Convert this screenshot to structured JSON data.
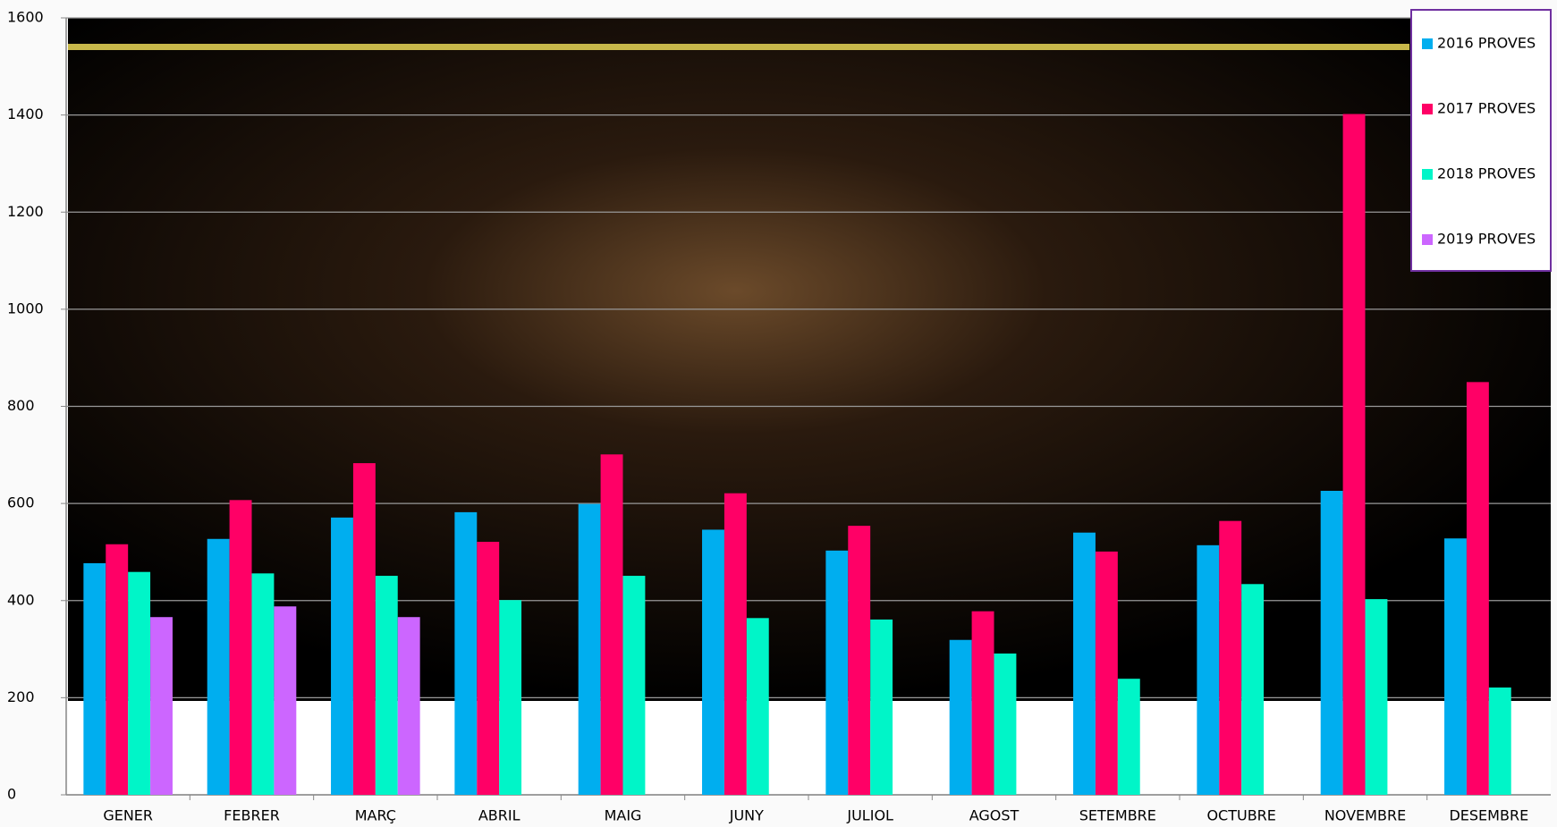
{
  "chart_data": {
    "type": "bar",
    "categories": [
      "GENER",
      "FEBRER",
      "MARÇ",
      "ABRIL",
      "MAIG",
      "JUNY",
      "JULIOL",
      "AGOST",
      "SETEMBRE",
      "OCTUBRE",
      "NOVEMBRE",
      "DESEMBRE"
    ],
    "series": [
      {
        "name": "2016 PROVES",
        "color": "#00aeef",
        "values": [
          477,
          527,
          571,
          582,
          599,
          546,
          503,
          319,
          540,
          514,
          626,
          528
        ]
      },
      {
        "name": "2017 PROVES",
        "color": "#ff0066",
        "values": [
          516,
          607,
          683,
          521,
          701,
          621,
          554,
          378,
          501,
          564,
          1402,
          850
        ]
      },
      {
        "name": "2018 PROVES",
        "color": "#00f5c8",
        "values": [
          459,
          456,
          451,
          401,
          451,
          364,
          361,
          291,
          239,
          434,
          403,
          221
        ]
      },
      {
        "name": "2019 PROVES",
        "color": "#cc66ff",
        "values": [
          366,
          388,
          366,
          null,
          null,
          null,
          null,
          null,
          null,
          null,
          null,
          null
        ]
      }
    ],
    "ylim": [
      0,
      1600
    ],
    "yticks": [
      0,
      200,
      400,
      600,
      800,
      1000,
      1200,
      1400,
      1600
    ],
    "grid": true,
    "legend": "top-right"
  }
}
